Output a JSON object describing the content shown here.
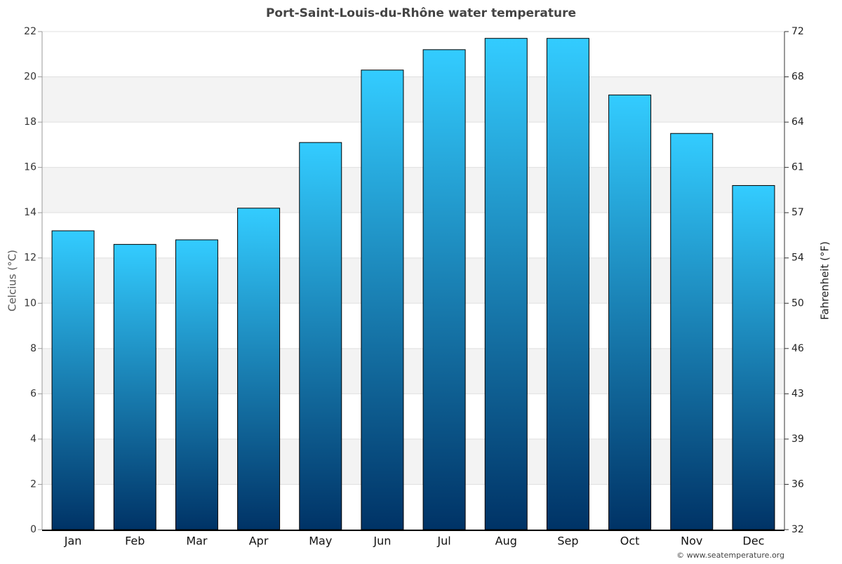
{
  "chart_data": {
    "type": "bar",
    "title": "Port-Saint-Louis-du-Rhône water temperature",
    "categories": [
      "Jan",
      "Feb",
      "Mar",
      "Apr",
      "May",
      "Jun",
      "Jul",
      "Aug",
      "Sep",
      "Oct",
      "Nov",
      "Dec"
    ],
    "values": [
      13.2,
      12.6,
      12.8,
      14.2,
      17.1,
      20.3,
      21.2,
      21.7,
      21.7,
      19.2,
      17.5,
      15.2
    ],
    "gradient": [
      "#33ccff",
      "#003366"
    ],
    "ylabel": "Celcius (°C)",
    "y2label": "Fahrenheit (°F)",
    "ylim": [
      0,
      22
    ],
    "yticks": [
      0,
      2,
      4,
      6,
      8,
      10,
      12,
      14,
      16,
      18,
      20,
      22
    ],
    "y2lim": [
      32,
      71.6
    ],
    "y2ticks": [
      {
        "value": 32,
        "label": "32"
      },
      {
        "value": 35.6,
        "label": "36"
      },
      {
        "value": 39.2,
        "label": "39"
      },
      {
        "value": 42.8,
        "label": "43"
      },
      {
        "value": 46.4,
        "label": "46"
      },
      {
        "value": 50,
        "label": "50"
      },
      {
        "value": 53.6,
        "label": "54"
      },
      {
        "value": 57.2,
        "label": "57"
      },
      {
        "value": 60.8,
        "label": "61"
      },
      {
        "value": 64.4,
        "label": "64"
      },
      {
        "value": 68,
        "label": "68"
      },
      {
        "value": 71.6,
        "label": "72"
      }
    ],
    "grid": true,
    "credit": "© www.seatemperature.org"
  }
}
